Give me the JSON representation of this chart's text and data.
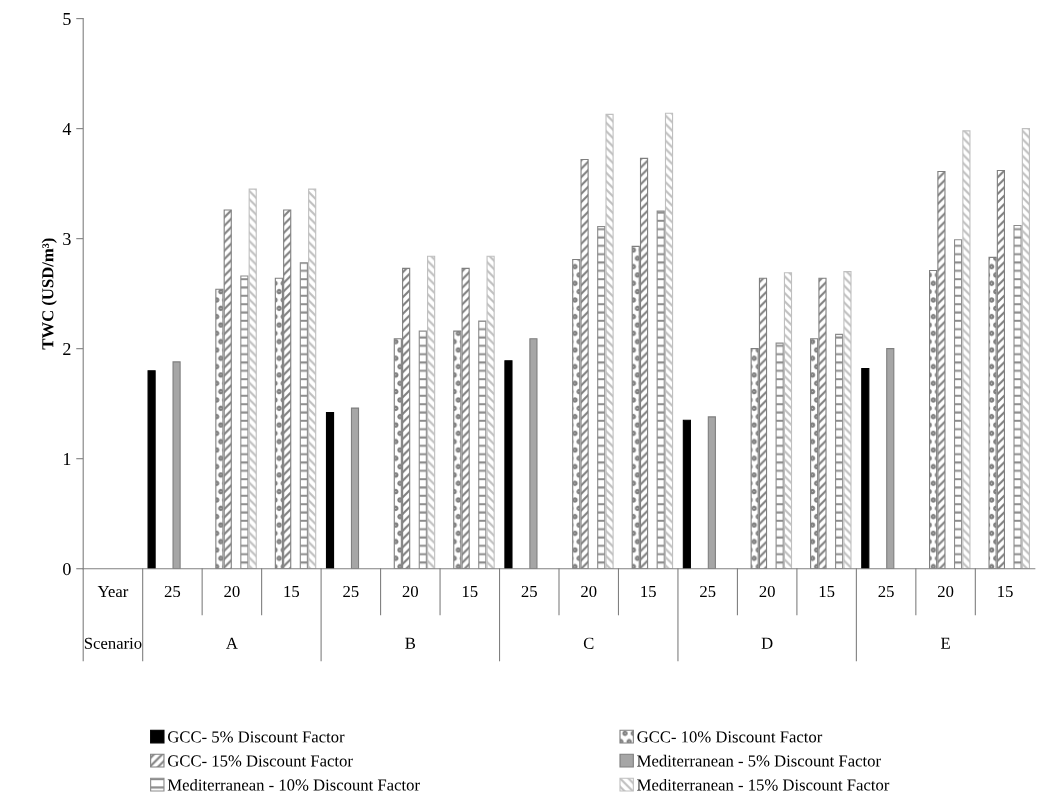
{
  "chart_data": {
    "type": "bar",
    "ylabel": "TWC (USD/m³)",
    "categories": [
      "Year",
      "25",
      "20",
      "15",
      "25",
      "20",
      "15",
      "25",
      "20",
      "15",
      "25",
      "20",
      "15",
      "25",
      "20",
      "15"
    ],
    "series": [
      {
        "name": "GCC- 5% Discount Factor",
        "color": "#000000",
        "values": [
          null,
          1.8,
          null,
          null,
          1.42,
          null,
          null,
          1.89,
          null,
          null,
          1.35,
          null,
          null,
          1.82,
          null,
          null
        ]
      },
      {
        "name": "GCC- 10% Discount Factor",
        "color": "#7f7f7f",
        "values": [
          null,
          null,
          2.54,
          2.64,
          null,
          2.09,
          2.16,
          null,
          2.81,
          2.93,
          null,
          2.0,
          2.09,
          null,
          2.71,
          2.83
        ]
      },
      {
        "name": "GCC- 15% Discount Factor",
        "color": "#7f7f7f",
        "values": [
          null,
          null,
          3.26,
          3.26,
          null,
          2.73,
          2.73,
          null,
          3.72,
          3.73,
          null,
          2.64,
          2.64,
          null,
          3.61,
          3.62
        ]
      },
      {
        "name": "Mediterranean - 5% Discount Factor",
        "color": "#a6a6a6",
        "values": [
          null,
          1.88,
          null,
          null,
          1.46,
          null,
          null,
          2.09,
          null,
          null,
          1.38,
          null,
          null,
          2.0,
          null,
          null
        ]
      },
      {
        "name": "Mediterranean - 10% Discount Factor",
        "color": "#8c8c8c",
        "values": [
          null,
          null,
          2.66,
          2.78,
          null,
          2.16,
          2.25,
          null,
          3.11,
          3.25,
          null,
          2.05,
          2.13,
          null,
          2.99,
          3.12
        ]
      },
      {
        "name": "Mediterranean - 15% Discount Factor",
        "color": "#bfbfbf",
        "values": [
          null,
          null,
          3.45,
          3.45,
          null,
          2.84,
          2.84,
          null,
          4.13,
          4.14,
          null,
          2.69,
          2.7,
          null,
          3.98,
          4.0
        ]
      }
    ],
    "annotations": [
      "Scenario",
      "A",
      "B",
      "C",
      "D",
      "E"
    ],
    "ylim": [
      0,
      5
    ],
    "yticks": [
      0,
      1,
      2,
      3,
      4,
      5
    ],
    "grid": false,
    "legend": "bottom"
  }
}
